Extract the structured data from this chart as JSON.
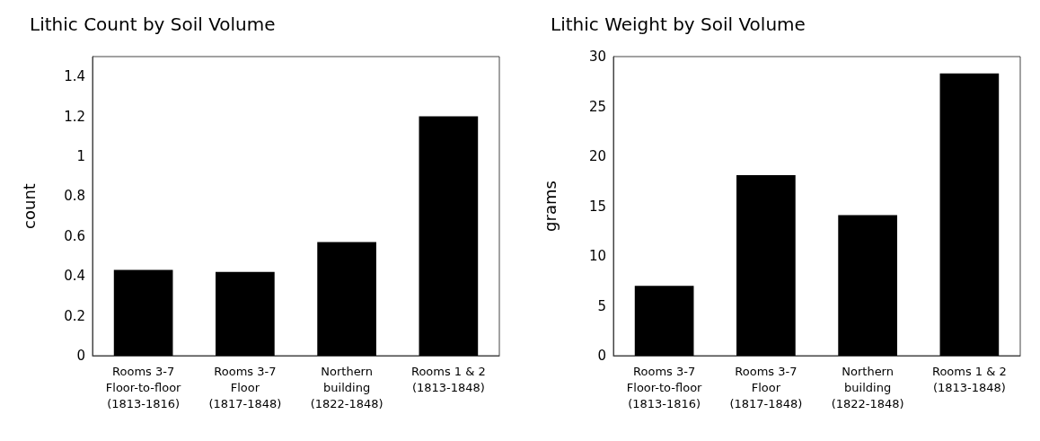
{
  "chart_data": [
    {
      "type": "bar",
      "title": "Lithic Count by Soil Volume",
      "ylabel": "count",
      "categories": [
        "Rooms 3-7\nFloor-to-floor\n(1813-1816)",
        "Rooms 3-7\nFloor\n(1817-1848)",
        "Northern\nbuilding\n(1822-1848)",
        "Rooms 1 & 2\n(1813-1848)"
      ],
      "values": [
        0.43,
        0.42,
        0.57,
        1.2
      ],
      "color": "#000000",
      "ylim": [
        0,
        1.5
      ],
      "yticks": [
        0,
        0.2,
        0.4,
        0.6,
        0.8,
        1,
        1.2,
        1.4
      ],
      "grid": false
    },
    {
      "type": "bar",
      "title": "Lithic Weight by Soil Volume",
      "ylabel": "grams",
      "categories": [
        "Rooms 3-7\nFloor-to-floor\n(1813-1816)",
        "Rooms 3-7\nFloor\n(1817-1848)",
        "Northern\nbuilding\n(1822-1848)",
        "Rooms 1 & 2\n(1813-1848)"
      ],
      "values": [
        7.0,
        18.1,
        14.1,
        28.3
      ],
      "color": "#000000",
      "ylim": [
        0,
        30
      ],
      "yticks": [
        0,
        5,
        10,
        15,
        20,
        25,
        30
      ],
      "grid": false
    }
  ]
}
